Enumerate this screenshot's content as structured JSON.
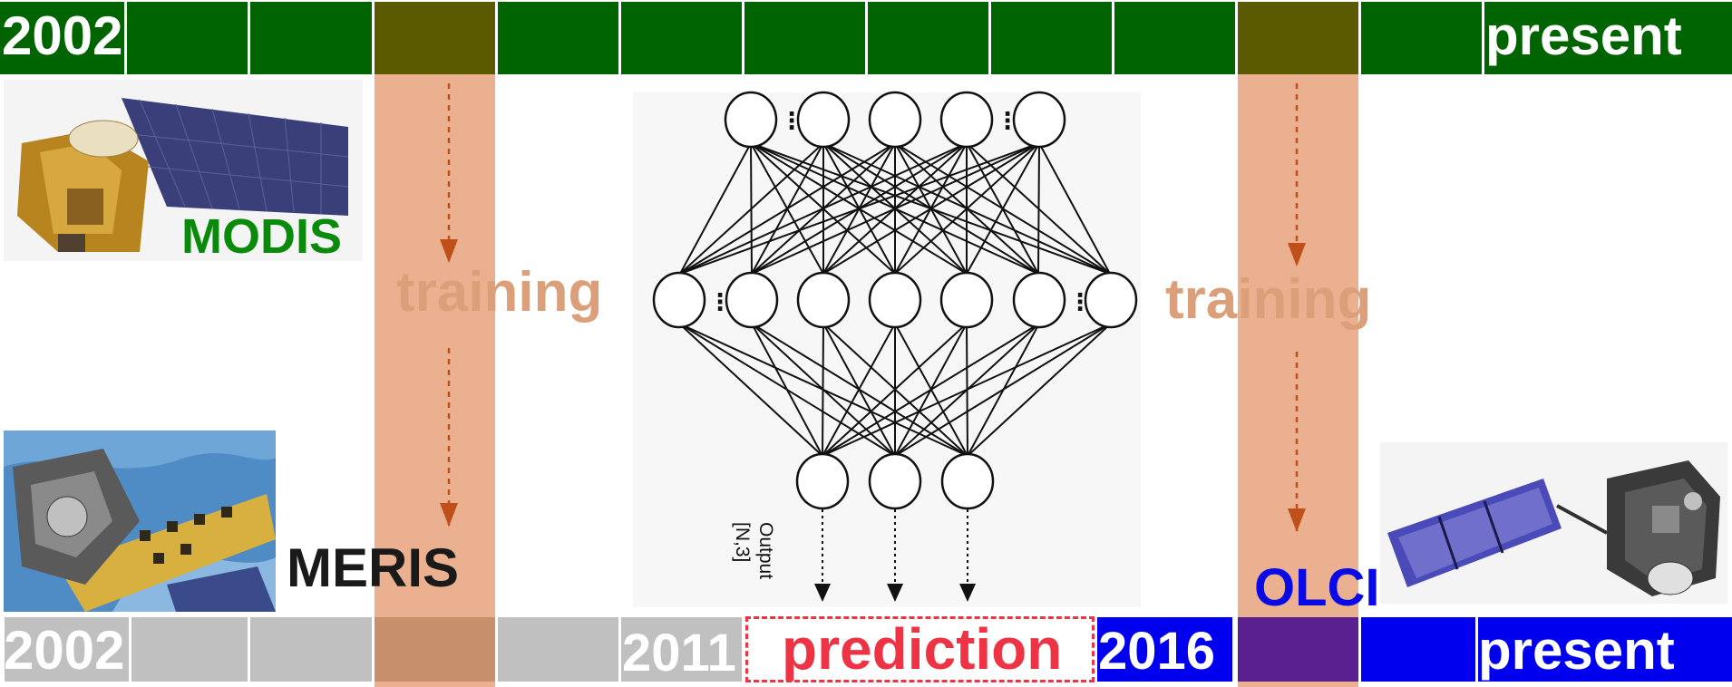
{
  "top_timeline": {
    "start_label": "2002",
    "end_label": "present",
    "color": "#006400",
    "highlight_color": "#5a5a00"
  },
  "modis": {
    "label": "MODIS",
    "color": "#0a8a0a"
  },
  "meris": {
    "label": "MERIS",
    "color": "#1a1a1a"
  },
  "olci": {
    "label": "OLCI",
    "color": "#0a0ae6"
  },
  "training_left": {
    "label": "training",
    "color": "#dba07a"
  },
  "training_right": {
    "label": "training",
    "color": "#dba07a"
  },
  "bottom_timeline": {
    "start_label": "2002",
    "mid_label": "2011",
    "prediction_label": "prediction",
    "olci_start_label": "2016",
    "end_label": "present",
    "gray_color": "#c0c0c0",
    "blue_color": "#0000ee",
    "prediction_color": "#ee3344",
    "overlap_purple": "#5a2090"
  },
  "network": {
    "output_label": "Output",
    "output_shape": "[N,3]",
    "ellipsis": "⋮"
  },
  "training_band_color": "#ebb08f",
  "arrow_color": "#c0501a"
}
